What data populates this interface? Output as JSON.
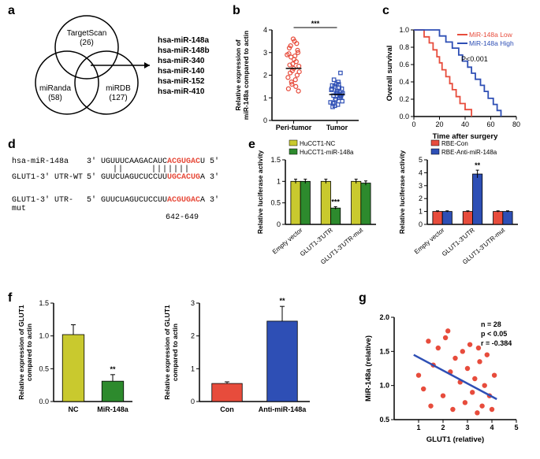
{
  "a": {
    "label": "a",
    "sets": [
      {
        "name": "TargetScan",
        "count": "(26)"
      },
      {
        "name": "miRanda",
        "count": "(58)"
      },
      {
        "name": "miRDB",
        "count": "(127)"
      }
    ],
    "mirnas": [
      "hsa-miR-148a",
      "hsa-miR-148b",
      "hsa-miR-340",
      "hsa-miR-140",
      "hsa-miR-152",
      "hsa-miR-410"
    ]
  },
  "b": {
    "label": "b",
    "ylabel": "Relative expression of\nmiR-148a compared to actin",
    "ylim": [
      0,
      4
    ],
    "yticks": [
      0,
      1,
      2,
      3,
      4
    ],
    "categories": [
      "Peri-tumor",
      "Tumor"
    ],
    "colors": [
      "#e74c3c",
      "#2e4fb5"
    ],
    "sig": "***",
    "peri_points": [
      [
        0.85,
        2.9
      ],
      [
        0.88,
        1.4
      ],
      [
        0.9,
        3.2
      ],
      [
        0.92,
        2.1
      ],
      [
        0.94,
        2.8
      ],
      [
        0.96,
        1.6
      ],
      [
        0.98,
        2.5
      ],
      [
        1.0,
        2.3
      ],
      [
        1.02,
        3.5
      ],
      [
        1.04,
        1.8
      ],
      [
        1.06,
        2.6
      ],
      [
        1.08,
        2.0
      ],
      [
        1.1,
        3.0
      ],
      [
        1.12,
        2.4
      ],
      [
        0.87,
        1.9
      ],
      [
        0.93,
        3.3
      ],
      [
        0.97,
        2.2
      ],
      [
        1.01,
        2.7
      ],
      [
        1.05,
        1.5
      ],
      [
        1.09,
        3.1
      ],
      [
        0.89,
        2.95
      ],
      [
        0.95,
        1.7
      ],
      [
        1.03,
        2.85
      ],
      [
        1.07,
        3.4
      ],
      [
        1.11,
        1.3
      ],
      [
        0.91,
        2.45
      ],
      [
        0.99,
        3.6
      ],
      [
        1.13,
        2.15
      ]
    ],
    "tumor_points": [
      [
        1.85,
        0.8
      ],
      [
        1.88,
        1.4
      ],
      [
        1.9,
        0.6
      ],
      [
        1.92,
        1.1
      ],
      [
        1.94,
        1.5
      ],
      [
        1.96,
        0.9
      ],
      [
        1.98,
        1.2
      ],
      [
        2.0,
        1.3
      ],
      [
        2.02,
        0.7
      ],
      [
        2.04,
        1.6
      ],
      [
        2.06,
        1.0
      ],
      [
        2.08,
        2.1
      ],
      [
        2.1,
        1.15
      ],
      [
        2.12,
        0.85
      ],
      [
        1.87,
        1.35
      ],
      [
        1.93,
        1.8
      ],
      [
        1.97,
        0.95
      ],
      [
        2.01,
        1.25
      ],
      [
        2.05,
        1.45
      ],
      [
        2.09,
        1.05
      ],
      [
        1.89,
        1.55
      ],
      [
        1.95,
        0.65
      ],
      [
        2.03,
        1.7
      ],
      [
        2.07,
        1.1
      ],
      [
        2.11,
        1.4
      ],
      [
        1.91,
        0.75
      ],
      [
        1.99,
        1.6
      ],
      [
        2.13,
        1.2
      ]
    ]
  },
  "c": {
    "label": "c",
    "xlabel": "Time after surgery",
    "ylabel": "Overall survival",
    "xlim": [
      0,
      80
    ],
    "xticks": [
      0,
      20,
      40,
      60,
      80
    ],
    "ylim": [
      0,
      1.0
    ],
    "yticks": [
      "0.0",
      "0.2",
      "0.4",
      "0.6",
      "0.8",
      "1.0"
    ],
    "legend": [
      {
        "label": "MiR-148a Low",
        "color": "#e74c3c"
      },
      {
        "label": "MiR-148a High",
        "color": "#2e4fb5"
      }
    ],
    "pvalue": "P<0.001",
    "low_curve": [
      [
        0,
        1
      ],
      [
        8,
        1
      ],
      [
        8,
        0.92
      ],
      [
        12,
        0.92
      ],
      [
        12,
        0.85
      ],
      [
        15,
        0.85
      ],
      [
        15,
        0.77
      ],
      [
        18,
        0.77
      ],
      [
        18,
        0.69
      ],
      [
        20,
        0.69
      ],
      [
        20,
        0.62
      ],
      [
        22,
        0.62
      ],
      [
        22,
        0.54
      ],
      [
        25,
        0.54
      ],
      [
        25,
        0.46
      ],
      [
        28,
        0.46
      ],
      [
        28,
        0.38
      ],
      [
        30,
        0.38
      ],
      [
        30,
        0.31
      ],
      [
        33,
        0.31
      ],
      [
        33,
        0.23
      ],
      [
        36,
        0.23
      ],
      [
        36,
        0.15
      ],
      [
        40,
        0.15
      ],
      [
        40,
        0.08
      ],
      [
        45,
        0.08
      ],
      [
        45,
        0
      ]
    ],
    "high_curve": [
      [
        0,
        1
      ],
      [
        20,
        1
      ],
      [
        20,
        0.93
      ],
      [
        25,
        0.93
      ],
      [
        25,
        0.86
      ],
      [
        30,
        0.86
      ],
      [
        30,
        0.79
      ],
      [
        35,
        0.79
      ],
      [
        35,
        0.71
      ],
      [
        38,
        0.71
      ],
      [
        38,
        0.64
      ],
      [
        42,
        0.64
      ],
      [
        42,
        0.57
      ],
      [
        45,
        0.57
      ],
      [
        45,
        0.5
      ],
      [
        48,
        0.5
      ],
      [
        48,
        0.43
      ],
      [
        52,
        0.43
      ],
      [
        52,
        0.36
      ],
      [
        55,
        0.36
      ],
      [
        55,
        0.29
      ],
      [
        58,
        0.29
      ],
      [
        58,
        0.21
      ],
      [
        62,
        0.21
      ],
      [
        62,
        0.14
      ],
      [
        65,
        0.14
      ],
      [
        65,
        0.07
      ],
      [
        68,
        0.07
      ],
      [
        68,
        0
      ]
    ]
  },
  "d": {
    "label": "d",
    "lines": [
      {
        "name": "hsa-miR-148a",
        "pre": "3' UGUUUCAAGACAUC",
        "seed": "ACGUGAC",
        "post": "U 5'"
      },
      {
        "name": "GLUT1-3' UTR-WT",
        "pre": "5' GUUCUAGUCUCCUU",
        "seed": "UGCACUG",
        "post": "A 3'"
      },
      {
        "name": "GLUT1-3' UTR-mut",
        "pre": "5' GUUCUAGUCUCCUU",
        "seed": "ACGUGAC",
        "post": "A 3'"
      }
    ],
    "range": "642-649"
  },
  "e": {
    "label": "e",
    "ylabel": "Relative luciferase activity",
    "categories": [
      "Empty vector",
      "GLUT1-3'UTR",
      "GLUT1-3'UTR-mut"
    ],
    "left": {
      "legend": [
        {
          "label": "HuCCT1-NC",
          "color": "#c9c92e"
        },
        {
          "label": "HuCCT1-miR-148a",
          "color": "#2d8a2d"
        }
      ],
      "data": [
        [
          1.0,
          1.0
        ],
        [
          1.0,
          0.38
        ],
        [
          1.0,
          0.96
        ]
      ],
      "err": [
        [
          0.05,
          0.05
        ],
        [
          0.05,
          0.03
        ],
        [
          0.05,
          0.05
        ]
      ],
      "sig": {
        "idx": 1,
        "bar": 1,
        "text": "***"
      },
      "ylim": [
        0,
        1.5
      ],
      "yticks": [
        0,
        0.5,
        1.0,
        1.5
      ]
    },
    "right": {
      "legend": [
        {
          "label": "RBE-Con",
          "color": "#e74c3c"
        },
        {
          "label": "RBE-Anti-miR-148a",
          "color": "#2e4fb5"
        }
      ],
      "data": [
        [
          1.0,
          1.0
        ],
        [
          1.0,
          3.9
        ],
        [
          1.0,
          1.0
        ]
      ],
      "err": [
        [
          0.05,
          0.05
        ],
        [
          0.05,
          0.3
        ],
        [
          0.05,
          0.05
        ]
      ],
      "sig": {
        "idx": 1,
        "bar": 1,
        "text": "**"
      },
      "ylim": [
        0,
        5
      ],
      "yticks": [
        0,
        1,
        2,
        3,
        4,
        5
      ]
    }
  },
  "f": {
    "label": "f",
    "ylabel": "Relative expression of GLUT1\ncompared to actin",
    "left": {
      "categories": [
        "NC",
        "MiR-148a"
      ],
      "colors": [
        "#c9c92e",
        "#2d8a2d"
      ],
      "values": [
        1.02,
        0.31
      ],
      "err": [
        0.15,
        0.1
      ],
      "sig": {
        "idx": 1,
        "text": "**"
      },
      "ylim": [
        0,
        1.5
      ],
      "yticks": [
        "0.0",
        "0.5",
        "1.0",
        "1.5"
      ]
    },
    "right": {
      "categories": [
        "Con",
        "Anti-miR-148a"
      ],
      "colors": [
        "#e74c3c",
        "#2e4fb5"
      ],
      "values": [
        0.55,
        2.45
      ],
      "err": [
        0.05,
        0.45
      ],
      "sig": {
        "idx": 1,
        "text": "**"
      },
      "ylim": [
        0,
        3
      ],
      "yticks": [
        0,
        1,
        2,
        3
      ]
    }
  },
  "g": {
    "label": "g",
    "xlabel": "GLUT1 (relative)",
    "ylabel": "MiR-148a (relative)",
    "xlim": [
      0,
      5
    ],
    "xticks": [
      1,
      2,
      3,
      4,
      5
    ],
    "ylim": [
      0.5,
      2.0
    ],
    "yticks": [
      "0.5",
      "1.0",
      "1.5",
      "2.0"
    ],
    "stats": [
      "n = 28",
      "p < 0.05",
      "r = -0.384"
    ],
    "point_color": "#e74c3c",
    "line_color": "#2e4fb5",
    "fit": [
      [
        0.8,
        1.45
      ],
      [
        4.2,
        0.8
      ]
    ],
    "points": [
      [
        1.0,
        1.15
      ],
      [
        1.2,
        0.95
      ],
      [
        1.4,
        1.65
      ],
      [
        1.6,
        1.3
      ],
      [
        1.8,
        1.55
      ],
      [
        2.0,
        0.85
      ],
      [
        2.1,
        1.7
      ],
      [
        2.3,
        1.2
      ],
      [
        2.4,
        0.65
      ],
      [
        2.5,
        1.4
      ],
      [
        2.7,
        1.05
      ],
      [
        2.8,
        1.5
      ],
      [
        2.9,
        0.75
      ],
      [
        3.0,
        1.25
      ],
      [
        3.1,
        1.6
      ],
      [
        3.2,
        0.9
      ],
      [
        3.3,
        1.1
      ],
      [
        3.4,
        0.6
      ],
      [
        3.5,
        1.35
      ],
      [
        3.6,
        0.7
      ],
      [
        3.7,
        1.0
      ],
      [
        3.8,
        1.45
      ],
      [
        3.9,
        0.85
      ],
      [
        4.0,
        0.65
      ],
      [
        4.1,
        1.15
      ],
      [
        2.2,
        1.8
      ],
      [
        1.5,
        0.7
      ],
      [
        3.45,
        1.55
      ]
    ]
  }
}
